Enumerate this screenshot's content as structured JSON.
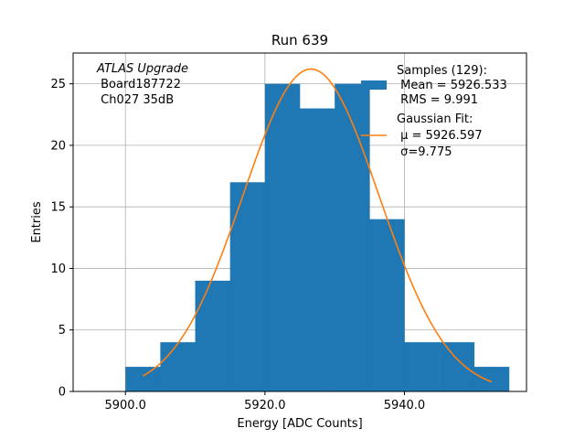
{
  "chart_data": {
    "type": "bar",
    "title": "Run 639",
    "xlabel": "Energy [ADC Counts]",
    "ylabel": "Entries",
    "xlim": [
      5892.5,
      5957.5
    ],
    "ylim": [
      0,
      27.5
    ],
    "grid": true,
    "x_ticks": [
      5900,
      5920,
      5940
    ],
    "x_tick_labels": [
      "5900.0",
      "5920.0",
      "5940.0"
    ],
    "y_ticks": [
      0,
      5,
      10,
      15,
      20,
      25
    ],
    "y_tick_labels": [
      "0",
      "5",
      "10",
      "15",
      "20",
      "25"
    ],
    "histogram": {
      "name": "Samples (129):",
      "color": "#1f77b4",
      "bin_edges": [
        5900,
        5905,
        5910,
        5915,
        5920,
        5925,
        5930,
        5935,
        5940,
        5945,
        5950,
        5955
      ],
      "counts": [
        2,
        4,
        9,
        17,
        25,
        23,
        25,
        14,
        4,
        4,
        2
      ]
    },
    "fit": {
      "name": "Gaussian Fit:",
      "color": "#ff7f0e",
      "mu": 5926.597,
      "sigma": 9.775,
      "amplitude": 26.2,
      "x_range": [
        5902.5,
        5952.5
      ]
    },
    "annotation_lines": [
      "ATLAS Upgrade",
      " Board187722",
      " Ch027 35dB"
    ],
    "legend": {
      "position": "top-right",
      "samples_lines": [
        "Samples (129):",
        " Mean = 5926.533",
        " RMS = 9.991"
      ],
      "fit_lines": [
        "Gaussian Fit:",
        " μ = 5926.597",
        " σ=9.775"
      ]
    }
  }
}
